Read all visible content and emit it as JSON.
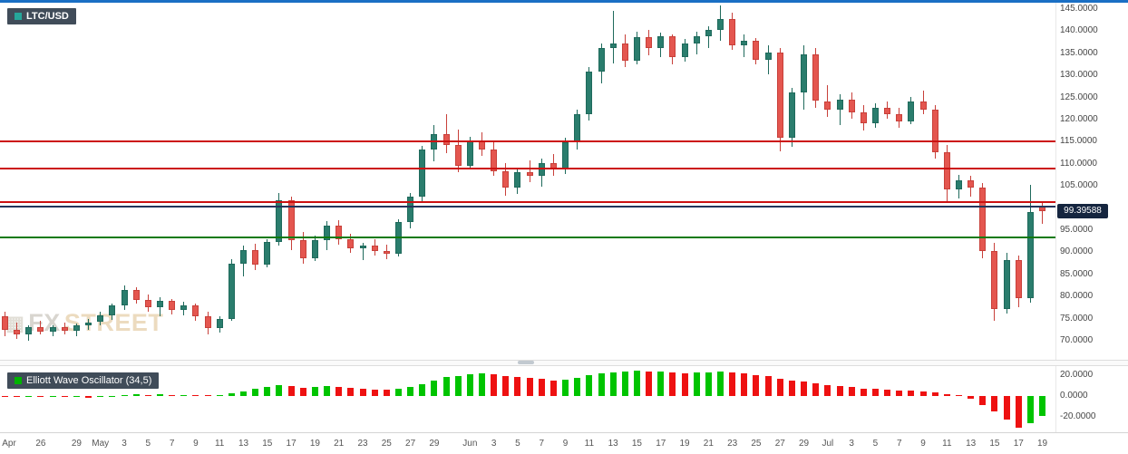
{
  "header": {
    "symbol": "LTC/USD"
  },
  "oscillator_label": "Elliott Wave Oscillator (34,5)",
  "watermark": {
    "fx": "FX",
    "street": "STREET"
  },
  "price_badge": "99.39588",
  "colors": {
    "top_border": "#1a6fc4",
    "chip_bg": "#404c59",
    "symbol_square": "#26a69a",
    "oscillator_square": "#00b300",
    "candle_up_fill": "#2a7d6d",
    "candle_up_border": "#1f6a5c",
    "candle_down_fill": "#e4564f",
    "candle_down_border": "#c8403a",
    "oscillator_up": "#00c400",
    "oscillator_down": "#ee1111",
    "price_badge_bg": "#15253f"
  },
  "chart_data": {
    "type": "candlestick",
    "title": "LTC/USD",
    "current_price": 99.39588,
    "y_axis": {
      "max": 145,
      "min": 70,
      "step": 5,
      "labels": [
        "145.0000",
        "140.0000",
        "135.0000",
        "130.0000",
        "125.0000",
        "120.0000",
        "115.0000",
        "110.0000",
        "105.0000",
        "100.0000",
        "95.0000",
        "90.0000",
        "85.0000",
        "80.0000",
        "75.0000",
        "70.0000"
      ]
    },
    "x_axis_labels": [
      [
        "Apr",
        0
      ],
      [
        "26",
        3
      ],
      [
        "29",
        6
      ],
      [
        "May",
        8
      ],
      [
        "3",
        10
      ],
      [
        "5",
        12
      ],
      [
        "7",
        14
      ],
      [
        "9",
        16
      ],
      [
        "11",
        18
      ],
      [
        "13",
        20
      ],
      [
        "15",
        22
      ],
      [
        "17",
        24
      ],
      [
        "19",
        26
      ],
      [
        "21",
        28
      ],
      [
        "23",
        30
      ],
      [
        "25",
        32
      ],
      [
        "27",
        34
      ],
      [
        "29",
        36
      ],
      [
        "Jun",
        39
      ],
      [
        "3",
        41
      ],
      [
        "5",
        43
      ],
      [
        "7",
        45
      ],
      [
        "9",
        47
      ],
      [
        "11",
        49
      ],
      [
        "13",
        51
      ],
      [
        "15",
        53
      ],
      [
        "17",
        55
      ],
      [
        "19",
        57
      ],
      [
        "21",
        59
      ],
      [
        "23",
        61
      ],
      [
        "25",
        63
      ],
      [
        "27",
        65
      ],
      [
        "29",
        67
      ],
      [
        "Jul",
        69
      ],
      [
        "3",
        71
      ],
      [
        "5",
        73
      ],
      [
        "7",
        75
      ],
      [
        "9",
        77
      ],
      [
        "11",
        79
      ],
      [
        "13",
        81
      ],
      [
        "15",
        83
      ],
      [
        "17",
        85
      ],
      [
        "19",
        87
      ]
    ],
    "levels": [
      {
        "price": 115.0,
        "color": "#cc1111"
      },
      {
        "price": 108.9,
        "color": "#cc1111"
      },
      {
        "price": 101.4,
        "color": "#cc1111"
      },
      {
        "price": 100.3,
        "color": "#23365c"
      },
      {
        "price": 93.4,
        "color": "#0e7a0e"
      }
    ],
    "candles": [
      [
        75.5,
        76.5,
        71.0,
        72.5
      ],
      [
        72.5,
        74.0,
        70.5,
        71.5
      ],
      [
        71.5,
        73.5,
        70.0,
        73.0
      ],
      [
        73.0,
        74.5,
        71.5,
        72.0
      ],
      [
        72.0,
        73.5,
        71.0,
        73.0
      ],
      [
        73.0,
        74.0,
        71.5,
        72.2
      ],
      [
        72.2,
        73.8,
        71.0,
        73.5
      ],
      [
        73.5,
        75.0,
        72.5,
        74.2
      ],
      [
        74.2,
        76.5,
        73.5,
        75.8
      ],
      [
        75.8,
        78.5,
        74.8,
        78.0
      ],
      [
        78.0,
        82.5,
        77.0,
        81.5
      ],
      [
        81.5,
        82.0,
        78.5,
        79.2
      ],
      [
        79.2,
        80.5,
        76.5,
        77.5
      ],
      [
        77.5,
        79.8,
        75.5,
        79.0
      ],
      [
        79.0,
        79.5,
        76.0,
        77.0
      ],
      [
        77.0,
        78.8,
        75.8,
        78.0
      ],
      [
        78.0,
        78.5,
        74.5,
        75.5
      ],
      [
        75.5,
        76.5,
        71.5,
        72.8
      ],
      [
        72.8,
        75.5,
        71.8,
        75.0
      ],
      [
        75.0,
        88.5,
        74.5,
        87.5
      ],
      [
        87.5,
        91.5,
        84.5,
        90.5
      ],
      [
        90.5,
        92.0,
        86.0,
        87.2
      ],
      [
        87.2,
        93.0,
        86.5,
        92.3
      ],
      [
        92.3,
        103.5,
        91.5,
        101.8
      ],
      [
        101.8,
        102.5,
        90.5,
        92.8
      ],
      [
        92.8,
        94.5,
        87.5,
        88.6
      ],
      [
        88.6,
        93.8,
        88.0,
        92.8
      ],
      [
        92.8,
        97.0,
        90.5,
        96.0
      ],
      [
        96.0,
        97.2,
        91.8,
        93.0
      ],
      [
        93.0,
        94.2,
        89.8,
        90.8
      ],
      [
        90.8,
        92.2,
        88.2,
        91.6
      ],
      [
        91.6,
        93.0,
        89.2,
        90.2
      ],
      [
        90.2,
        91.8,
        88.4,
        89.6
      ],
      [
        89.6,
        97.5,
        89.0,
        96.8
      ],
      [
        96.8,
        103.5,
        95.5,
        102.5
      ],
      [
        102.5,
        114.0,
        101.5,
        113.2
      ],
      [
        113.2,
        118.8,
        110.5,
        116.8
      ],
      [
        116.8,
        121.2,
        112.5,
        114.2
      ],
      [
        114.2,
        117.8,
        108.2,
        109.6
      ],
      [
        109.6,
        116.2,
        108.8,
        115.2
      ],
      [
        115.2,
        117.2,
        111.8,
        113.2
      ],
      [
        113.2,
        114.8,
        107.2,
        108.4
      ],
      [
        108.4,
        110.2,
        102.8,
        104.6
      ],
      [
        104.6,
        109.2,
        103.2,
        108.2
      ],
      [
        108.2,
        110.8,
        105.8,
        107.2
      ],
      [
        107.2,
        111.2,
        104.8,
        110.2
      ],
      [
        110.2,
        112.2,
        107.2,
        108.8
      ],
      [
        108.8,
        115.8,
        107.8,
        114.8
      ],
      [
        114.8,
        122.2,
        113.2,
        121.2
      ],
      [
        121.2,
        131.8,
        119.8,
        130.8
      ],
      [
        130.8,
        137.2,
        128.2,
        136.2
      ],
      [
        136.2,
        144.6,
        132.8,
        137.2
      ],
      [
        137.2,
        139.2,
        131.8,
        133.4
      ],
      [
        133.4,
        139.8,
        132.6,
        138.6
      ],
      [
        138.6,
        140.2,
        134.6,
        136.2
      ],
      [
        136.2,
        139.6,
        134.2,
        138.8
      ],
      [
        138.8,
        139.2,
        132.4,
        134.2
      ],
      [
        134.2,
        138.2,
        133.2,
        137.2
      ],
      [
        137.2,
        139.8,
        134.8,
        138.8
      ],
      [
        138.8,
        141.2,
        136.2,
        140.2
      ],
      [
        140.2,
        145.9,
        137.8,
        142.8
      ],
      [
        142.8,
        144.2,
        135.8,
        136.8
      ],
      [
        136.8,
        139.2,
        134.2,
        137.8
      ],
      [
        137.8,
        138.4,
        132.6,
        133.6
      ],
      [
        133.6,
        136.8,
        130.2,
        135.2
      ],
      [
        135.2,
        136.2,
        112.8,
        115.8
      ],
      [
        115.8,
        127.2,
        113.8,
        126.2
      ],
      [
        126.2,
        136.8,
        122.2,
        134.8
      ],
      [
        134.8,
        136.2,
        122.6,
        124.2
      ],
      [
        124.2,
        127.8,
        120.6,
        122.2
      ],
      [
        122.2,
        125.8,
        118.8,
        124.6
      ],
      [
        124.6,
        126.2,
        120.2,
        121.6
      ],
      [
        121.6,
        123.2,
        117.6,
        119.2
      ],
      [
        119.2,
        123.6,
        118.2,
        122.6
      ],
      [
        122.6,
        124.2,
        120.2,
        121.2
      ],
      [
        121.2,
        122.6,
        118.2,
        119.6
      ],
      [
        119.6,
        125.2,
        119.0,
        124.2
      ],
      [
        124.2,
        126.6,
        121.2,
        122.2
      ],
      [
        122.2,
        123.2,
        111.2,
        112.6
      ],
      [
        112.6,
        114.2,
        101.6,
        104.2
      ],
      [
        104.2,
        107.6,
        102.2,
        106.2
      ],
      [
        106.2,
        107.2,
        102.6,
        104.6
      ],
      [
        104.6,
        105.6,
        88.6,
        90.2
      ],
      [
        90.2,
        92.2,
        74.6,
        77.2
      ],
      [
        77.2,
        89.8,
        76.2,
        88.2
      ],
      [
        88.2,
        89.2,
        77.6,
        79.6
      ],
      [
        79.6,
        105.2,
        78.6,
        99.2
      ],
      [
        100.6,
        101.4,
        96.4,
        99.39588
      ]
    ],
    "oscillator": {
      "name": "Elliott Wave Oscillator (34,5)",
      "axis_labels": [
        "20.0000",
        "0.0000",
        "-20.0000"
      ],
      "axis_values": [
        20,
        0,
        -20
      ],
      "values": [
        -0.8,
        -1.0,
        -0.9,
        -1.2,
        -1.0,
        -1.3,
        -1.1,
        -1.4,
        -1.2,
        -0.6,
        0.8,
        1.4,
        1.2,
        1.5,
        1.1,
        1.3,
        0.9,
        0.2,
        0.6,
        2.8,
        4.6,
        6.8,
        8.6,
        10.2,
        9.4,
        8.2,
        8.8,
        9.8,
        9.2,
        8.0,
        7.2,
        6.4,
        5.8,
        6.6,
        8.4,
        11.6,
        15.2,
        18.2,
        19.6,
        21.2,
        21.8,
        21.2,
        19.6,
        18.4,
        17.2,
        16.4,
        15.2,
        15.8,
        17.6,
        19.8,
        21.8,
        23.2,
        23.6,
        24.2,
        23.6,
        23.8,
        22.6,
        22.2,
        22.4,
        22.8,
        23.4,
        22.4,
        21.6,
        20.2,
        19.4,
        16.8,
        14.6,
        13.8,
        12.2,
        10.4,
        9.6,
        8.6,
        7.4,
        6.8,
        6.2,
        5.4,
        5.0,
        4.6,
        3.2,
        1.4,
        0.2,
        -2.6,
        -8.4,
        -14.6,
        -22.8,
        -30.5,
        -26.4,
        -19.6
      ]
    }
  }
}
